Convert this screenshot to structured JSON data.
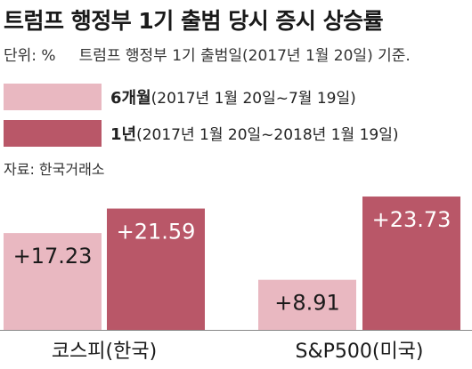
{
  "title": "트럼프 행정부 1기 출범 당시 증시 상승률",
  "unit": {
    "label": "단위: %",
    "note": "트럼프 행정부 1기 출범일(2017년 1월 20일) 기준."
  },
  "legend": [
    {
      "name": "6개월",
      "range": "(2017년 1월 20일~7월 19일)",
      "color": "#e9b8c1"
    },
    {
      "name": "1년",
      "range": "(2017년 1월 20일~2018년 1월 19일)",
      "color": "#b95768"
    }
  ],
  "source": "자료: 한국거래소",
  "chart_data": {
    "type": "bar",
    "categories": [
      "코스피(한국)",
      "S&P500(미국)"
    ],
    "series": [
      {
        "name": "6개월",
        "values": [
          17.23,
          8.91
        ],
        "labels": [
          "+17.23",
          "+8.91"
        ],
        "color": "#e9b8c1"
      },
      {
        "name": "1년",
        "values": [
          21.59,
          23.73
        ],
        "labels": [
          "+21.59",
          "+23.73"
        ],
        "color": "#b95768"
      }
    ],
    "ylim": [
      0,
      25
    ],
    "grid": false,
    "legend_position": "top-left"
  }
}
